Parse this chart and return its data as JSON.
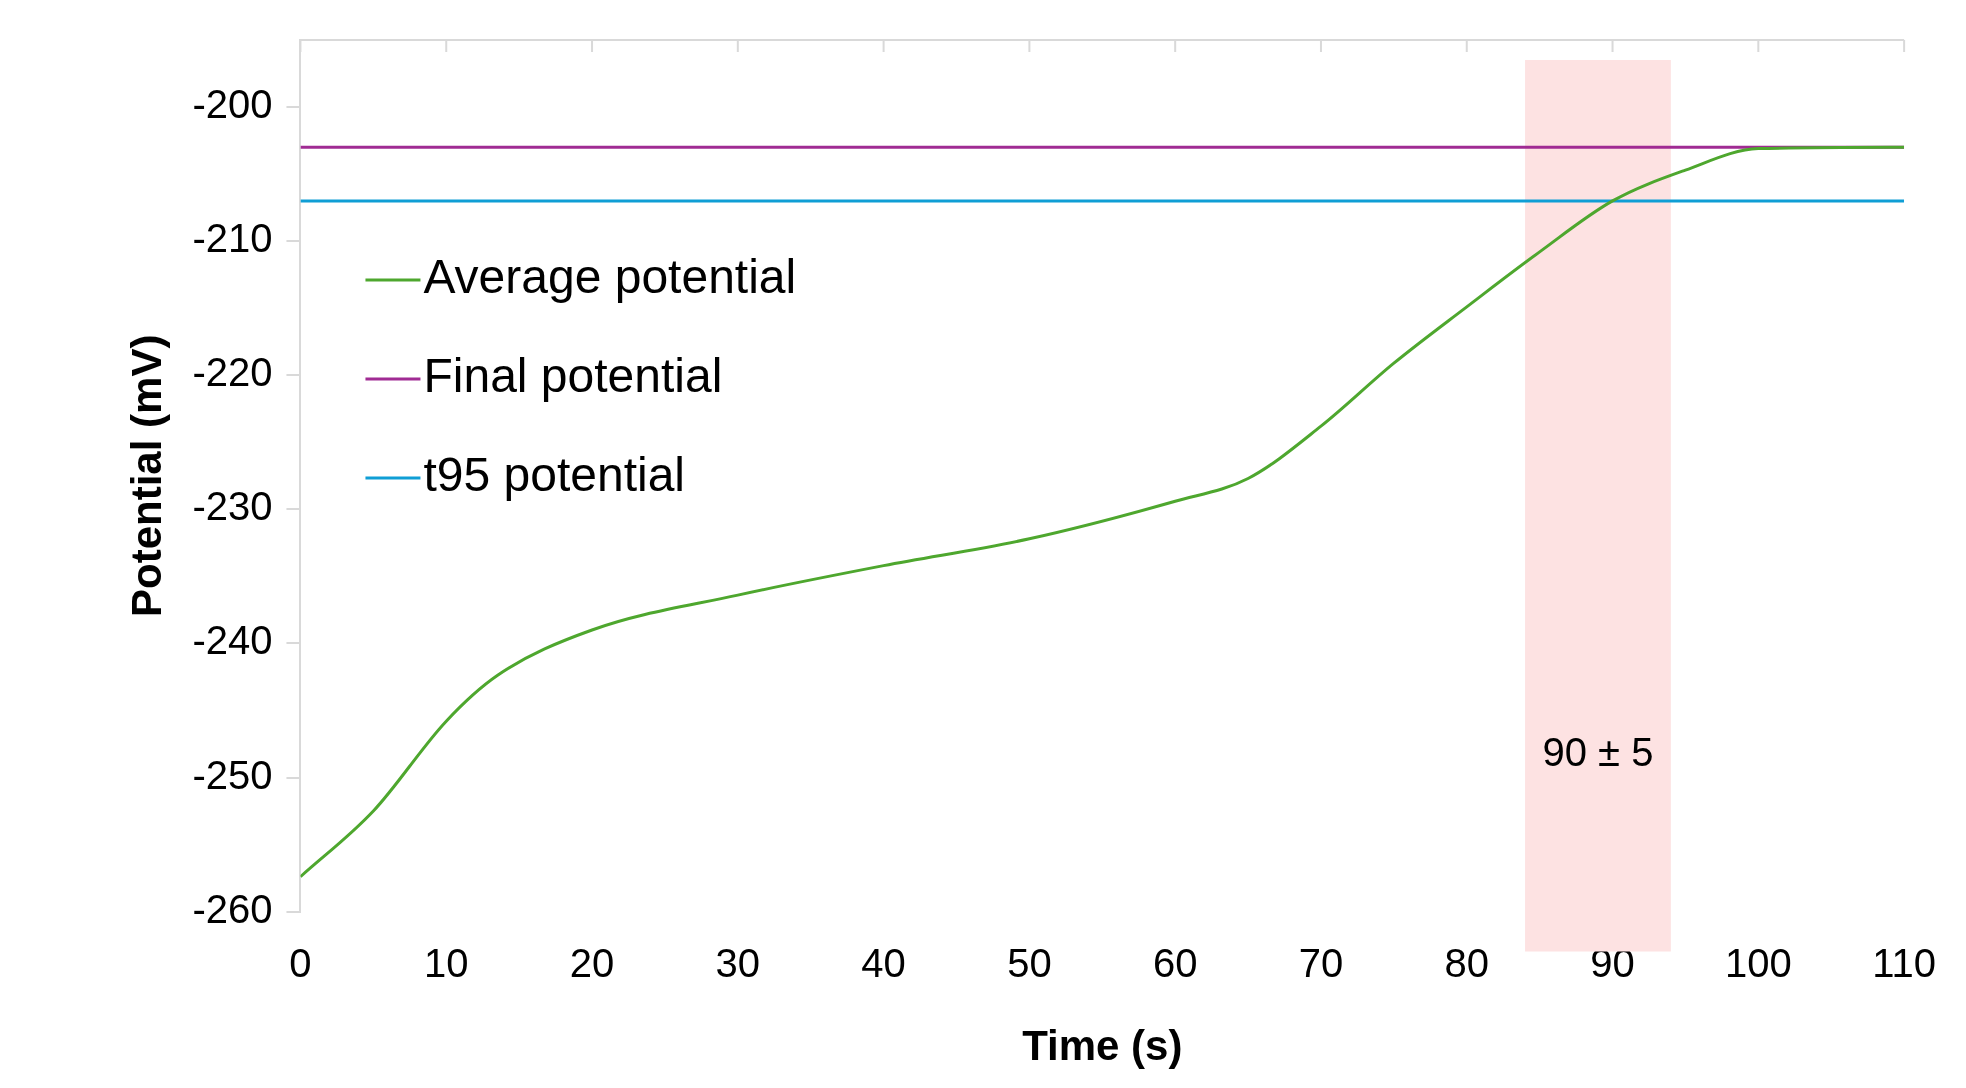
{
  "chart_data": {
    "type": "line",
    "xlabel": "Time (s)",
    "ylabel": "Potential (mV)",
    "xlim": [
      0,
      110
    ],
    "xticks": [
      0,
      10,
      20,
      30,
      40,
      50,
      60,
      70,
      80,
      90,
      100,
      110
    ],
    "ylim": [
      -260,
      -195
    ],
    "yticks": [
      -260,
      -250,
      -240,
      -230,
      -220,
      -210,
      -200
    ],
    "grid": false,
    "legend": "top left",
    "marker": "none",
    "bands": [
      {
        "axis": "x",
        "from": 84,
        "to": 94,
        "color": "#fde2e2"
      }
    ],
    "annotations": [
      "90 ± 5"
    ],
    "series": [
      {
        "name": "Average potential",
        "color": "#4ea72e",
        "x": [
          0,
          5,
          10,
          13.5,
          20,
          30,
          40,
          50,
          60,
          65,
          70,
          75,
          80,
          85,
          90,
          95,
          100,
          110
        ],
        "values": [
          -257.4,
          -252.5,
          -245.8,
          -242.4,
          -239,
          -236.4,
          -234.2,
          -232.2,
          -229.4,
          -227.7,
          -223.8,
          -219.1,
          -214.9,
          -210.8,
          -207,
          -204.7,
          -203.1,
          -203
        ]
      },
      {
        "name": "Final potential",
        "color": "#a02b93",
        "x": [
          0,
          110
        ],
        "values": [
          -203,
          -203
        ]
      },
      {
        "name": "t95 potential",
        "color": "#0f9ed5",
        "x": [
          0,
          110
        ],
        "values": [
          -207,
          -207
        ]
      }
    ]
  }
}
